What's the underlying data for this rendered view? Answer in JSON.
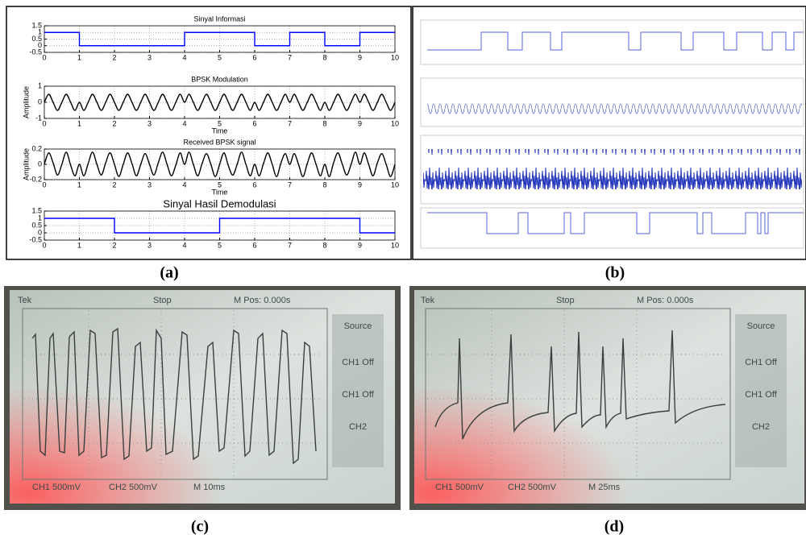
{
  "chart_data": [
    {
      "type": "line",
      "title": "Sinyal Informasi",
      "x": [
        0,
        1,
        1,
        4,
        4,
        6,
        6,
        7,
        7,
        8,
        8,
        9,
        9,
        10
      ],
      "series": [
        {
          "color": "#0000ff",
          "values": [
            1,
            1,
            0,
            0,
            1,
            1,
            0,
            0,
            1,
            1,
            0,
            0,
            1,
            1
          ]
        }
      ],
      "xlim": [
        0,
        10
      ],
      "xticks": [
        0,
        1,
        2,
        3,
        4,
        5,
        6,
        7,
        8,
        9,
        10
      ],
      "ylim": [
        -0.5,
        1.5
      ],
      "yticks": [
        -0.5,
        0,
        0.5,
        1,
        1.5
      ],
      "grid": true
    },
    {
      "type": "spline",
      "title": "BPSK Modulation",
      "xlabel": "Time",
      "ylabel": "Amplitude",
      "x": [
        0,
        0.125,
        0.25,
        0.375,
        0.5,
        0.625,
        0.75,
        0.875,
        1,
        1.125,
        1.25,
        1.375,
        1.5,
        1.625,
        1.75,
        1.875,
        2,
        2.125,
        2.25,
        2.375,
        2.5,
        2.625,
        2.75,
        2.875,
        3,
        3.125,
        3.25,
        3.375,
        3.5,
        3.625,
        3.75,
        3.875,
        4,
        4.125,
        4.25,
        4.375,
        4.5,
        4.625,
        4.75,
        4.875,
        5,
        5.125,
        5.25,
        5.375,
        5.5,
        5.625,
        5.75,
        5.875,
        6,
        6.125,
        6.25,
        6.375,
        6.5,
        6.625,
        6.75,
        6.875,
        7,
        7.125,
        7.25,
        7.375,
        7.5,
        7.625,
        7.75,
        7.875,
        8,
        8.125,
        8.25,
        8.375,
        8.5,
        8.625,
        8.75,
        8.875,
        9,
        9.125,
        9.25,
        9.375,
        9.5,
        9.625,
        9.75,
        9.875,
        10
      ],
      "series": [
        {
          "color": "#000000",
          "values": [
            0,
            0.5,
            0,
            -0.5,
            0,
            0.5,
            0,
            -0.5,
            0,
            -0.5,
            0,
            0.5,
            0,
            -0.5,
            0,
            0.5,
            0,
            -0.5,
            0,
            0.5,
            0,
            -0.5,
            0,
            0.5,
            0,
            -0.5,
            0,
            0.5,
            0,
            -0.5,
            0,
            0.5,
            0,
            0.5,
            0,
            -0.5,
            0,
            0.5,
            0,
            -0.5,
            0,
            0.5,
            0,
            -0.5,
            0,
            0.5,
            0,
            -0.5,
            0,
            -0.5,
            0,
            0.5,
            0,
            -0.5,
            0,
            0.5,
            0,
            0.5,
            0,
            -0.5,
            0,
            0.5,
            0,
            -0.5,
            0,
            -0.5,
            0,
            0.5,
            0,
            -0.5,
            0,
            0.5,
            0,
            0.5,
            0,
            -0.5,
            0,
            0.5,
            0,
            -0.5,
            0
          ]
        }
      ],
      "xlim": [
        0,
        10
      ],
      "xticks": [
        0,
        1,
        2,
        3,
        4,
        5,
        6,
        7,
        8,
        9,
        10
      ],
      "ylim": [
        -1,
        1
      ],
      "yticks": [
        -1,
        0,
        1
      ],
      "grid": true
    },
    {
      "type": "spline",
      "title": "Received BPSK signal",
      "xlabel": "Time",
      "ylabel": "Amplitude",
      "x": [
        0,
        0.125,
        0.25,
        0.375,
        0.5,
        0.625,
        0.75,
        0.875,
        1,
        1.125,
        1.25,
        1.375,
        1.5,
        1.625,
        1.75,
        1.875,
        2,
        2.125,
        2.25,
        2.375,
        2.5,
        2.625,
        2.75,
        2.875,
        3,
        3.125,
        3.25,
        3.375,
        3.5,
        3.625,
        3.75,
        3.875,
        4,
        4.125,
        4.25,
        4.375,
        4.5,
        4.625,
        4.75,
        4.875,
        5,
        5.125,
        5.25,
        5.375,
        5.5,
        5.625,
        5.75,
        5.875,
        6,
        6.125,
        6.25,
        6.375,
        6.5,
        6.625,
        6.75,
        6.875,
        7,
        7.125,
        7.25,
        7.375,
        7.5,
        7.625,
        7.75,
        7.875,
        8,
        8.125,
        8.25,
        8.375,
        8.5,
        8.625,
        8.75,
        8.875,
        9,
        9.125,
        9.25,
        9.375,
        9.5,
        9.625,
        9.75,
        9.875,
        10
      ],
      "series": [
        {
          "color": "#000000",
          "values": [
            0,
            0.15,
            0.02,
            -0.14,
            0,
            0.16,
            -0.01,
            -0.15,
            0,
            -0.15,
            0.01,
            0.16,
            0,
            -0.14,
            0.02,
            0.15,
            0,
            -0.16,
            0,
            0.15,
            0.01,
            -0.15,
            0,
            0.14,
            0,
            -0.14,
            0.02,
            0.16,
            0,
            -0.15,
            -0.01,
            0.15,
            0,
            0.16,
            0,
            -0.15,
            0.01,
            0.14,
            0,
            -0.16,
            0,
            0.15,
            -0.02,
            -0.14,
            0,
            0.16,
            0,
            -0.15,
            0,
            -0.15,
            0.01,
            0.15,
            0,
            -0.16,
            0.02,
            0.14,
            0,
            0.14,
            0,
            -0.16,
            0.01,
            0.15,
            0,
            -0.15,
            0,
            -0.16,
            0.02,
            0.15,
            0,
            -0.14,
            0,
            0.16,
            0,
            0.15,
            0,
            -0.15,
            0.02,
            0.14,
            0,
            -0.16,
            0
          ]
        }
      ],
      "xlim": [
        0,
        10
      ],
      "xticks": [
        0,
        1,
        2,
        3,
        4,
        5,
        6,
        7,
        8,
        9,
        10
      ],
      "ylim": [
        -0.2,
        0.2
      ],
      "yticks": [
        -0.2,
        0,
        0.2
      ],
      "grid": true
    },
    {
      "type": "line",
      "title": "Sinyal Hasil Demodulasi",
      "x": [
        0,
        2,
        2,
        5,
        5,
        9,
        9,
        10
      ],
      "series": [
        {
          "color": "#0000ff",
          "values": [
            1,
            1,
            0,
            0,
            1,
            1,
            0,
            0
          ]
        }
      ],
      "xlim": [
        0,
        10
      ],
      "xticks": [
        0,
        1,
        2,
        3,
        4,
        5,
        6,
        7,
        8,
        9,
        10
      ],
      "ylim": [
        -0.5,
        1.5
      ],
      "yticks": [
        -0.5,
        0,
        0.5,
        1,
        1.5
      ],
      "grid": true
    }
  ],
  "captions": [
    "(a)",
    "(b)",
    "(c)",
    "(d)"
  ],
  "scope_c": {
    "brand": "Tek",
    "status": "Stop",
    "mpos": "M Pos: 0.000s",
    "menu": [
      "Source",
      "CH1 Off",
      "CH1 Off",
      "CH2"
    ],
    "ch1": "CH1 500mV",
    "ch2": "CH2 500mV",
    "time": "M 10ms"
  },
  "scope_d": {
    "brand": "Tek",
    "status": "Stop",
    "mpos": "M Pos: 0.000s",
    "menu": [
      "Source",
      "CH1 Off",
      "CH1 Off",
      "CH2"
    ],
    "ch1": "CH1 500mV",
    "ch2": "CH2 500mV",
    "time": "M 25ms"
  }
}
